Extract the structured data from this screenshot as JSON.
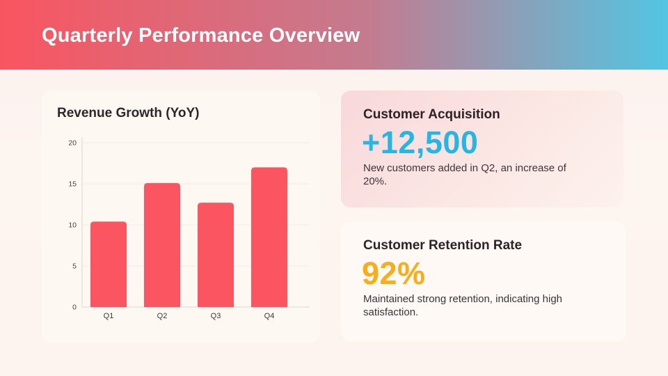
{
  "header": {
    "title": "Quarterly Performance Overview",
    "gradient_from": "#F95560",
    "gradient_to": "#52C5E2"
  },
  "chart_data": {
    "type": "bar",
    "title": "Revenue Growth (YoY)",
    "categories": [
      "Q1",
      "Q2",
      "Q3",
      "Q4"
    ],
    "values": [
      10.4,
      15.1,
      12.7,
      17
    ],
    "xlabel": "",
    "ylabel": "",
    "ylim": [
      0,
      20
    ],
    "yticks": [
      0,
      5,
      10,
      15,
      20
    ],
    "bar_color": "#FA5560",
    "grid": true,
    "legend": false
  },
  "stats": [
    {
      "title": "Customer Acquisition",
      "value": "+12,500",
      "value_color": "#27B6E2",
      "description": "New customers added in Q2, an increase of 20%."
    },
    {
      "title": "Customer Retention Rate",
      "value": "92%",
      "value_color": "#F8AD1B",
      "description": "Maintained strong retention, indicating high satisfaction."
    }
  ],
  "theme": {
    "page_bg": "#FDF4EF",
    "card_bg": "#FEF8F3",
    "pink_card_from": "#F9D8DA",
    "pink_card_to": "#FDF2ED",
    "heading_text": "#2E2127",
    "body_text": "#3E3338"
  }
}
